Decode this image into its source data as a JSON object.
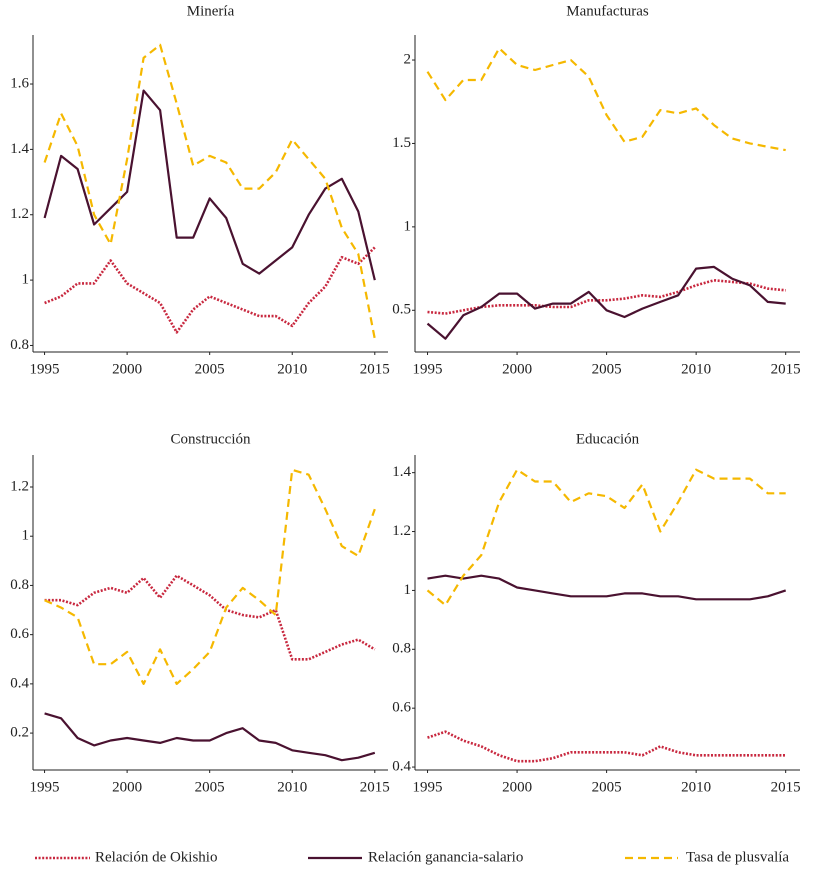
{
  "chart_data": [
    {
      "type": "line",
      "title": "Minería",
      "x": [
        1995,
        1996,
        1997,
        1998,
        1999,
        2000,
        2001,
        2002,
        2003,
        2004,
        2005,
        2006,
        2007,
        2008,
        2009,
        2010,
        2011,
        2012,
        2013,
        2014,
        2015
      ],
      "xlim": [
        1994.3,
        2015.8
      ],
      "xticks": [
        1995,
        2000,
        2005,
        2010,
        2015
      ],
      "ylim": [
        0.78,
        1.75
      ],
      "yticks": [
        0.8,
        1,
        1.2,
        1.4,
        1.6
      ],
      "series": [
        {
          "name": "Relación de Okishio",
          "color": "#c8283f",
          "linestyle": "dotted",
          "values": [
            0.93,
            0.95,
            0.99,
            0.99,
            1.06,
            0.99,
            0.96,
            0.93,
            0.84,
            0.91,
            0.95,
            0.93,
            0.91,
            0.89,
            0.89,
            0.86,
            0.93,
            0.98,
            1.07,
            1.05,
            1.1
          ]
        },
        {
          "name": "Relación ganancia-salario",
          "color": "#4a1230",
          "linestyle": "solid",
          "values": [
            1.19,
            1.38,
            1.34,
            1.17,
            1.22,
            1.27,
            1.58,
            1.52,
            1.13,
            1.13,
            1.25,
            1.19,
            1.05,
            1.02,
            1.06,
            1.1,
            1.2,
            1.28,
            1.31,
            1.21,
            1.0
          ]
        },
        {
          "name": "Tasa de plusvalía",
          "color": "#f5b800",
          "linestyle": "dashed",
          "values": [
            1.36,
            1.51,
            1.41,
            1.2,
            1.11,
            1.37,
            1.68,
            1.72,
            1.54,
            1.35,
            1.38,
            1.36,
            1.28,
            1.28,
            1.33,
            1.43,
            1.37,
            1.31,
            1.16,
            1.08,
            0.82
          ]
        }
      ]
    },
    {
      "type": "line",
      "title": "Manufacturas",
      "x": [
        1995,
        1996,
        1997,
        1998,
        1999,
        2000,
        2001,
        2002,
        2003,
        2004,
        2005,
        2006,
        2007,
        2008,
        2009,
        2010,
        2011,
        2012,
        2013,
        2014,
        2015
      ],
      "xlim": [
        1994.3,
        2015.8
      ],
      "xticks": [
        1995,
        2000,
        2005,
        2010,
        2015
      ],
      "ylim": [
        0.25,
        2.15
      ],
      "yticks": [
        0.5,
        1,
        1.5,
        2
      ],
      "series": [
        {
          "color": "#c8283f",
          "linestyle": "dotted",
          "values": [
            0.49,
            0.48,
            0.5,
            0.52,
            0.53,
            0.53,
            0.53,
            0.52,
            0.52,
            0.56,
            0.56,
            0.57,
            0.59,
            0.58,
            0.61,
            0.65,
            0.68,
            0.67,
            0.66,
            0.63,
            0.62
          ]
        },
        {
          "color": "#4a1230",
          "linestyle": "solid",
          "values": [
            0.42,
            0.33,
            0.47,
            0.52,
            0.6,
            0.6,
            0.51,
            0.54,
            0.54,
            0.61,
            0.5,
            0.46,
            0.51,
            0.55,
            0.59,
            0.75,
            0.76,
            0.69,
            0.65,
            0.55,
            0.54
          ]
        },
        {
          "color": "#f5b800",
          "linestyle": "dashed",
          "values": [
            1.93,
            1.76,
            1.88,
            1.88,
            2.07,
            1.97,
            1.94,
            1.97,
            2.0,
            1.9,
            1.67,
            1.51,
            1.54,
            1.7,
            1.68,
            1.71,
            1.61,
            1.53,
            1.5,
            1.48,
            1.46
          ]
        }
      ]
    },
    {
      "type": "line",
      "title": "Construcción",
      "x": [
        1995,
        1996,
        1997,
        1998,
        1999,
        2000,
        2001,
        2002,
        2003,
        2004,
        2005,
        2006,
        2007,
        2008,
        2009,
        2010,
        2011,
        2012,
        2013,
        2014,
        2015
      ],
      "xlim": [
        1994.3,
        2015.8
      ],
      "xticks": [
        1995,
        2000,
        2005,
        2010,
        2015
      ],
      "ylim": [
        0.05,
        1.33
      ],
      "yticks": [
        0.2,
        0.4,
        0.6,
        0.8,
        1,
        1.2
      ],
      "series": [
        {
          "color": "#c8283f",
          "linestyle": "dotted",
          "values": [
            0.74,
            0.74,
            0.72,
            0.77,
            0.79,
            0.77,
            0.83,
            0.75,
            0.84,
            0.8,
            0.76,
            0.7,
            0.68,
            0.67,
            0.7,
            0.5,
            0.5,
            0.53,
            0.56,
            0.58,
            0.54
          ]
        },
        {
          "color": "#4a1230",
          "linestyle": "solid",
          "values": [
            0.28,
            0.26,
            0.18,
            0.15,
            0.17,
            0.18,
            0.17,
            0.16,
            0.18,
            0.17,
            0.17,
            0.2,
            0.22,
            0.17,
            0.16,
            0.13,
            0.12,
            0.11,
            0.09,
            0.1,
            0.12
          ]
        },
        {
          "color": "#f5b800",
          "linestyle": "dashed",
          "values": [
            0.74,
            0.71,
            0.67,
            0.48,
            0.48,
            0.53,
            0.4,
            0.54,
            0.4,
            0.46,
            0.53,
            0.71,
            0.79,
            0.74,
            0.68,
            1.27,
            1.25,
            1.11,
            0.96,
            0.92,
            1.11
          ]
        }
      ]
    },
    {
      "type": "line",
      "title": "Educación",
      "x": [
        1995,
        1996,
        1997,
        1998,
        1999,
        2000,
        2001,
        2002,
        2003,
        2004,
        2005,
        2006,
        2007,
        2008,
        2009,
        2010,
        2011,
        2012,
        2013,
        2014,
        2015
      ],
      "xlim": [
        1994.3,
        2015.8
      ],
      "xticks": [
        1995,
        2000,
        2005,
        2010,
        2015
      ],
      "ylim": [
        0.39,
        1.46
      ],
      "yticks": [
        0.4,
        0.6,
        0.8,
        1,
        1.2,
        1.4
      ],
      "series": [
        {
          "color": "#c8283f",
          "linestyle": "dotted",
          "values": [
            0.5,
            0.52,
            0.49,
            0.47,
            0.44,
            0.42,
            0.42,
            0.43,
            0.45,
            0.45,
            0.45,
            0.45,
            0.44,
            0.47,
            0.45,
            0.44,
            0.44,
            0.44,
            0.44,
            0.44,
            0.44
          ]
        },
        {
          "color": "#4a1230",
          "linestyle": "solid",
          "values": [
            1.04,
            1.05,
            1.04,
            1.05,
            1.04,
            1.01,
            1.0,
            0.99,
            0.98,
            0.98,
            0.98,
            0.99,
            0.99,
            0.98,
            0.98,
            0.97,
            0.97,
            0.97,
            0.97,
            0.98,
            1.0
          ]
        },
        {
          "color": "#f5b800",
          "linestyle": "dashed",
          "values": [
            1.0,
            0.95,
            1.05,
            1.12,
            1.3,
            1.41,
            1.37,
            1.37,
            1.3,
            1.33,
            1.32,
            1.28,
            1.36,
            1.2,
            1.3,
            1.41,
            1.38,
            1.38,
            1.38,
            1.33,
            1.33
          ]
        }
      ]
    }
  ]
}
